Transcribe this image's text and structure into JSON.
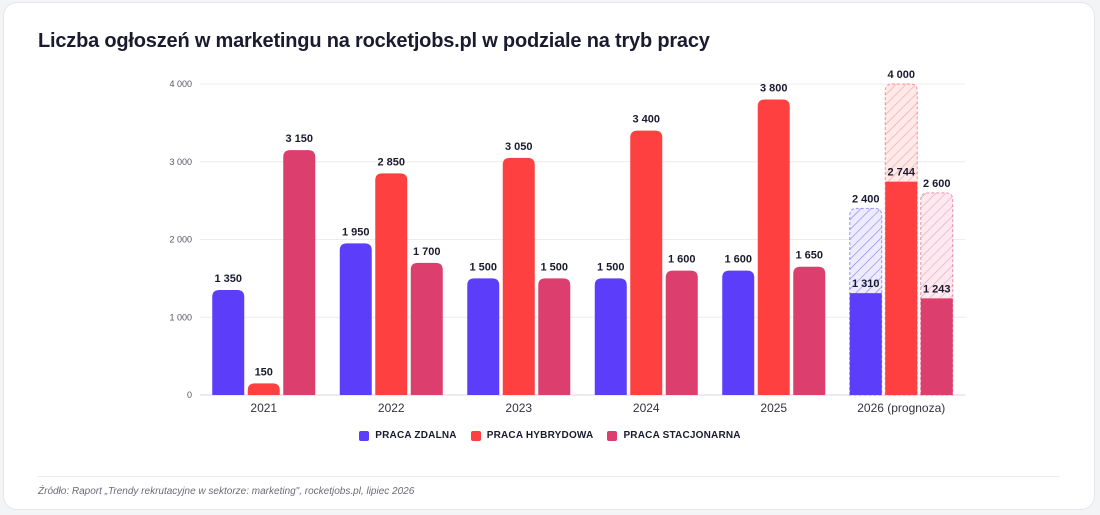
{
  "chart_data": {
    "type": "bar",
    "title": "Liczba ogłoszeń w marketingu na rocketjobs.pl w podziale na tryb pracy",
    "categories": [
      "2021",
      "2022",
      "2023",
      "2024",
      "2025",
      "2026 (prognoza)"
    ],
    "series": [
      {
        "name": "PRACA ZDALNA",
        "color": "#5b3dfa",
        "values": [
          1350,
          1950,
          1500,
          1500,
          1600,
          1310
        ],
        "labels": [
          "1 350",
          "1 950",
          "1 500",
          "1 500",
          "1 600",
          "1 310"
        ],
        "forecast_value": 2400,
        "forecast_label": "2 400"
      },
      {
        "name": "PRACA HYBRYDOWA",
        "color": "#ff4040",
        "values": [
          150,
          2850,
          3050,
          3400,
          3800,
          2744
        ],
        "labels": [
          "150",
          "2 850",
          "3 050",
          "3 400",
          "3 800",
          "2 744"
        ],
        "forecast_value": 4000,
        "forecast_label": "4 000"
      },
      {
        "name": "PRACA STACJONARNA",
        "color": "#dc3e6e",
        "values": [
          3150,
          1700,
          1500,
          1600,
          1650,
          1243
        ],
        "labels": [
          "3 150",
          "1 700",
          "1 500",
          "1 600",
          "1 650",
          "1 243"
        ],
        "forecast_value": 2600,
        "forecast_label": "2 600"
      }
    ],
    "forecast_category_index": 5,
    "ylim": [
      0,
      4000
    ],
    "y_ticks": [
      {
        "value": 0,
        "label": "0"
      },
      {
        "value": 1000,
        "label": "1 000"
      },
      {
        "value": 2000,
        "label": "2 000"
      },
      {
        "value": 3000,
        "label": "3 000"
      },
      {
        "value": 4000,
        "label": "4 000"
      }
    ],
    "grid": true,
    "legend_position": "bottom-center"
  },
  "source": "Źródło: Raport „Trendy rekrutacyjne w sektorze: marketing\", rocketjobs.pl, lipiec 2026"
}
